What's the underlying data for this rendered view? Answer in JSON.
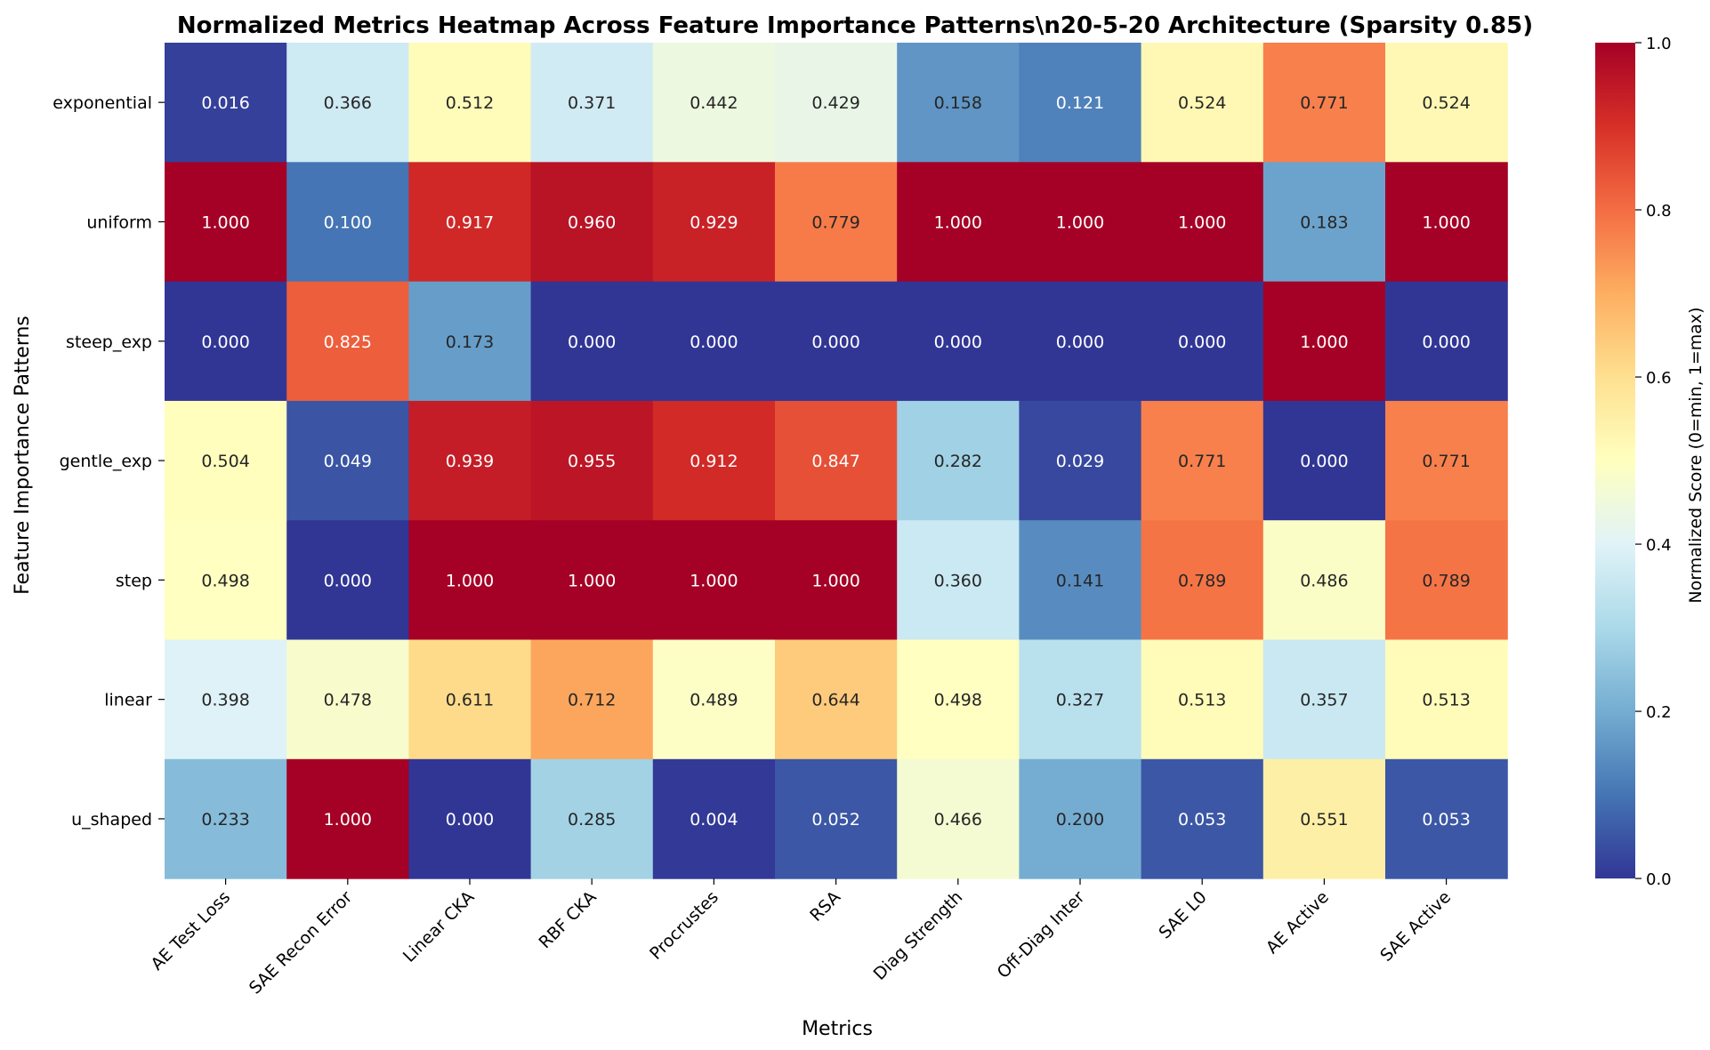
{
  "chart_data": {
    "type": "heatmap",
    "title": "Normalized Metrics Heatmap Across Feature Importance Patterns\\n20-5-20 Architecture (Sparsity 0.85)",
    "xlabel": "Metrics",
    "ylabel": "Feature Importance Patterns",
    "colorbar_label": "Normalized Score (0=min, 1=max)",
    "colormap": "RdYlBu_r",
    "vmin": 0.0,
    "vmax": 1.0,
    "colorbar_ticks": [
      "0.0",
      "0.2",
      "0.4",
      "0.6",
      "0.8",
      "1.0"
    ],
    "x_categories": [
      "AE Test Loss",
      "SAE Recon Error",
      "Linear CKA",
      "RBF CKA",
      "Procrustes",
      "RSA",
      "Diag Strength",
      "Off-Diag Inter",
      "SAE L0",
      "AE Active",
      "SAE Active"
    ],
    "y_categories": [
      "exponential",
      "uniform",
      "steep_exp",
      "gentle_exp",
      "step",
      "linear",
      "u_shaped"
    ],
    "values": [
      [
        0.016,
        0.366,
        0.512,
        0.371,
        0.442,
        0.429,
        0.158,
        0.121,
        0.524,
        0.771,
        0.524
      ],
      [
        1.0,
        0.1,
        0.917,
        0.96,
        0.929,
        0.779,
        1.0,
        1.0,
        1.0,
        0.183,
        1.0
      ],
      [
        0.0,
        0.825,
        0.173,
        0.0,
        0.0,
        0.0,
        0.0,
        0.0,
        0.0,
        1.0,
        0.0
      ],
      [
        0.504,
        0.049,
        0.939,
        0.955,
        0.912,
        0.847,
        0.282,
        0.029,
        0.771,
        0.0,
        0.771
      ],
      [
        0.498,
        0.0,
        1.0,
        1.0,
        1.0,
        1.0,
        0.36,
        0.141,
        0.789,
        0.486,
        0.789
      ],
      [
        0.398,
        0.478,
        0.611,
        0.712,
        0.489,
        0.644,
        0.498,
        0.327,
        0.513,
        0.357,
        0.513
      ],
      [
        0.233,
        1.0,
        0.0,
        0.285,
        0.004,
        0.052,
        0.466,
        0.2,
        0.053,
        0.551,
        0.053
      ]
    ]
  }
}
